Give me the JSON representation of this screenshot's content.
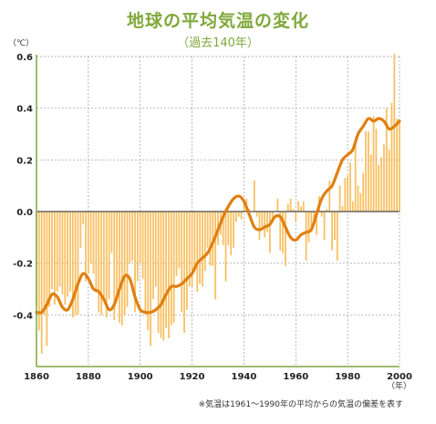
{
  "title": "地球の平均気温の変化",
  "subtitle": "（過去140年）",
  "ylabel": "（℃）",
  "xlabel": "（年）",
  "note": "※気温は1961〜1990年の平均からの気温の偏差を表す",
  "colors": {
    "bar": "#f8bf61",
    "smooth": "#e07f10",
    "grid": "#999999",
    "title": "#7fa83a",
    "axis": "#7fa83a"
  },
  "chart_data": {
    "type": "bar",
    "title": "地球の平均気温の変化",
    "xlim": [
      1860,
      2000
    ],
    "ylim": [
      -0.6,
      0.6
    ],
    "xticks": [
      1860,
      1880,
      1900,
      1920,
      1940,
      1960,
      1980,
      2000
    ],
    "yticks": [
      0.6,
      0.4,
      0.2,
      0.0,
      -0.2,
      -0.4
    ],
    "ytick_labels": [
      "0.6",
      "0.4",
      "0.2",
      "0.0",
      "-0.2",
      "-0.4"
    ],
    "grid": true,
    "series": [
      {
        "kind": "bar",
        "x": [
          1860,
          1861,
          1862,
          1863,
          1864,
          1865,
          1866,
          1867,
          1868,
          1869,
          1870,
          1871,
          1872,
          1873,
          1874,
          1875,
          1876,
          1877,
          1878,
          1879,
          1880,
          1881,
          1882,
          1883,
          1884,
          1885,
          1886,
          1887,
          1888,
          1889,
          1890,
          1891,
          1892,
          1893,
          1894,
          1895,
          1896,
          1897,
          1898,
          1899,
          1900,
          1901,
          1902,
          1903,
          1904,
          1905,
          1906,
          1907,
          1908,
          1909,
          1910,
          1911,
          1912,
          1913,
          1914,
          1915,
          1916,
          1917,
          1918,
          1919,
          1920,
          1921,
          1922,
          1923,
          1924,
          1925,
          1926,
          1927,
          1928,
          1929,
          1930,
          1931,
          1932,
          1933,
          1934,
          1935,
          1936,
          1937,
          1938,
          1939,
          1940,
          1941,
          1942,
          1943,
          1944,
          1945,
          1946,
          1947,
          1948,
          1949,
          1950,
          1951,
          1952,
          1953,
          1954,
          1955,
          1956,
          1957,
          1958,
          1959,
          1960,
          1961,
          1962,
          1963,
          1964,
          1965,
          1966,
          1967,
          1968,
          1969,
          1970,
          1971,
          1972,
          1973,
          1974,
          1975,
          1976,
          1977,
          1978,
          1979,
          1980,
          1981,
          1982,
          1983,
          1984,
          1985,
          1986,
          1987,
          1988,
          1989,
          1990,
          1991,
          1992,
          1993,
          1994,
          1995,
          1996,
          1997,
          1998,
          1999,
          2000
        ],
        "values": [
          -0.36,
          -0.46,
          -0.55,
          -0.4,
          -0.52,
          -0.37,
          -0.3,
          -0.36,
          -0.31,
          -0.29,
          -0.32,
          -0.36,
          -0.33,
          -0.31,
          -0.41,
          -0.4,
          -0.4,
          -0.14,
          -0.05,
          -0.27,
          -0.24,
          -0.2,
          -0.24,
          -0.31,
          -0.39,
          -0.4,
          -0.35,
          -0.41,
          -0.34,
          -0.16,
          -0.42,
          -0.33,
          -0.43,
          -0.44,
          -0.4,
          -0.37,
          -0.2,
          -0.19,
          -0.39,
          -0.27,
          -0.2,
          -0.26,
          -0.4,
          -0.46,
          -0.52,
          -0.34,
          -0.29,
          -0.47,
          -0.49,
          -0.5,
          -0.45,
          -0.49,
          -0.44,
          -0.43,
          -0.25,
          -0.22,
          -0.39,
          -0.47,
          -0.38,
          -0.29,
          -0.29,
          -0.23,
          -0.31,
          -0.28,
          -0.29,
          -0.23,
          -0.14,
          -0.21,
          -0.21,
          -0.34,
          -0.13,
          -0.09,
          -0.13,
          -0.27,
          -0.13,
          -0.17,
          -0.14,
          -0.04,
          -0.02,
          -0.03,
          0.03,
          0.05,
          0.01,
          0.0,
          0.12,
          -0.02,
          -0.11,
          -0.06,
          -0.1,
          -0.08,
          -0.16,
          -0.03,
          0.0,
          0.05,
          -0.15,
          -0.16,
          -0.21,
          0.03,
          0.05,
          0.01,
          -0.04,
          0.04,
          0.02,
          0.04,
          -0.19,
          -0.12,
          -0.06,
          -0.05,
          -0.09,
          0.06,
          -0.02,
          -0.11,
          0.01,
          0.12,
          -0.15,
          -0.11,
          -0.19,
          0.1,
          0.02,
          0.13,
          0.14,
          0.19,
          0.04,
          0.27,
          0.1,
          0.07,
          0.15,
          0.31,
          0.31,
          0.22,
          0.37,
          0.32,
          0.18,
          0.21,
          0.26,
          0.4,
          0.24,
          0.42,
          0.61,
          0.36,
          0.34
        ]
      },
      {
        "kind": "smoothed",
        "x": [
          1860,
          1862,
          1864,
          1866,
          1868,
          1870,
          1872,
          1874,
          1876,
          1878,
          1880,
          1882,
          1884,
          1886,
          1888,
          1890,
          1892,
          1894,
          1896,
          1898,
          1900,
          1902,
          1904,
          1906,
          1908,
          1910,
          1912,
          1914,
          1916,
          1918,
          1920,
          1922,
          1924,
          1926,
          1928,
          1930,
          1932,
          1934,
          1936,
          1938,
          1940,
          1942,
          1944,
          1946,
          1948,
          1950,
          1952,
          1954,
          1956,
          1958,
          1960,
          1962,
          1964,
          1966,
          1968,
          1970,
          1972,
          1974,
          1976,
          1978,
          1980,
          1982,
          1984,
          1986,
          1988,
          1990,
          1992,
          1994,
          1996,
          1998,
          2000
        ],
        "values": [
          -0.39,
          -0.39,
          -0.36,
          -0.32,
          -0.33,
          -0.37,
          -0.38,
          -0.34,
          -0.28,
          -0.24,
          -0.26,
          -0.3,
          -0.31,
          -0.34,
          -0.38,
          -0.36,
          -0.3,
          -0.25,
          -0.26,
          -0.33,
          -0.38,
          -0.39,
          -0.39,
          -0.38,
          -0.36,
          -0.32,
          -0.29,
          -0.29,
          -0.28,
          -0.26,
          -0.24,
          -0.2,
          -0.18,
          -0.16,
          -0.12,
          -0.07,
          -0.02,
          0.02,
          0.05,
          0.06,
          0.04,
          -0.01,
          -0.06,
          -0.07,
          -0.06,
          -0.05,
          -0.02,
          -0.02,
          -0.06,
          -0.1,
          -0.11,
          -0.09,
          -0.08,
          -0.07,
          -0.01,
          0.05,
          0.08,
          0.1,
          0.15,
          0.2,
          0.22,
          0.24,
          0.3,
          0.33,
          0.36,
          0.35,
          0.36,
          0.35,
          0.32,
          0.33,
          0.35
        ]
      }
    ]
  }
}
